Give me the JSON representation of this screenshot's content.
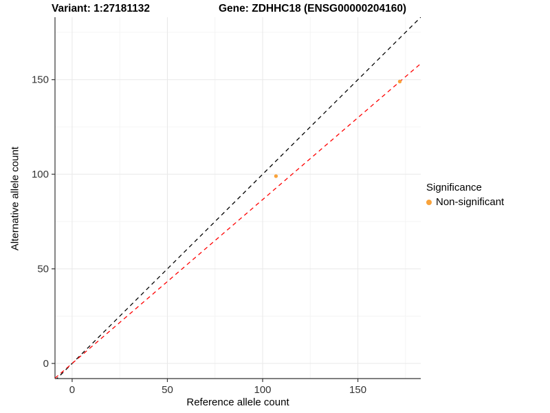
{
  "titles": {
    "left": "Variant: 1:27181132",
    "right": "Gene: ZDHHC18 (ENSG00000204160)"
  },
  "chart_data": {
    "type": "scatter",
    "title_left": "Variant: 1:27181132",
    "title_right": "Gene: ZDHHC18 (ENSG00000204160)",
    "xlabel": "Reference allele count",
    "ylabel": "Alternative allele count",
    "xlim": [
      -9,
      183
    ],
    "ylim": [
      -8,
      183
    ],
    "xticks": [
      0,
      50,
      100,
      150
    ],
    "yticks": [
      0,
      50,
      100,
      150
    ],
    "xticks_minor": [
      25,
      75,
      125,
      175
    ],
    "yticks_minor": [
      25,
      75,
      125,
      175
    ],
    "grid": true,
    "points": [
      {
        "x": 107,
        "y": 99,
        "series": "Non-significant"
      },
      {
        "x": 172,
        "y": 149,
        "series": "Non-significant"
      }
    ],
    "lines": [
      {
        "name": "identity-line",
        "slope": 1.0,
        "intercept": 0,
        "color": "#000000",
        "dashed": true
      },
      {
        "name": "fit-line",
        "slope": 0.866,
        "intercept": 0,
        "color": "#ff0000",
        "dashed": true
      }
    ],
    "legend": {
      "title": "Significance",
      "entries": [
        {
          "label": "Non-significant",
          "color": "#F9A33B"
        }
      ],
      "position": "right"
    },
    "colors": {
      "point": "#F9A33B",
      "grid_major": "#E8E8E8",
      "grid_minor": "#F4F4F4",
      "axis_line": "#333333",
      "tick_text": "#333333"
    }
  }
}
